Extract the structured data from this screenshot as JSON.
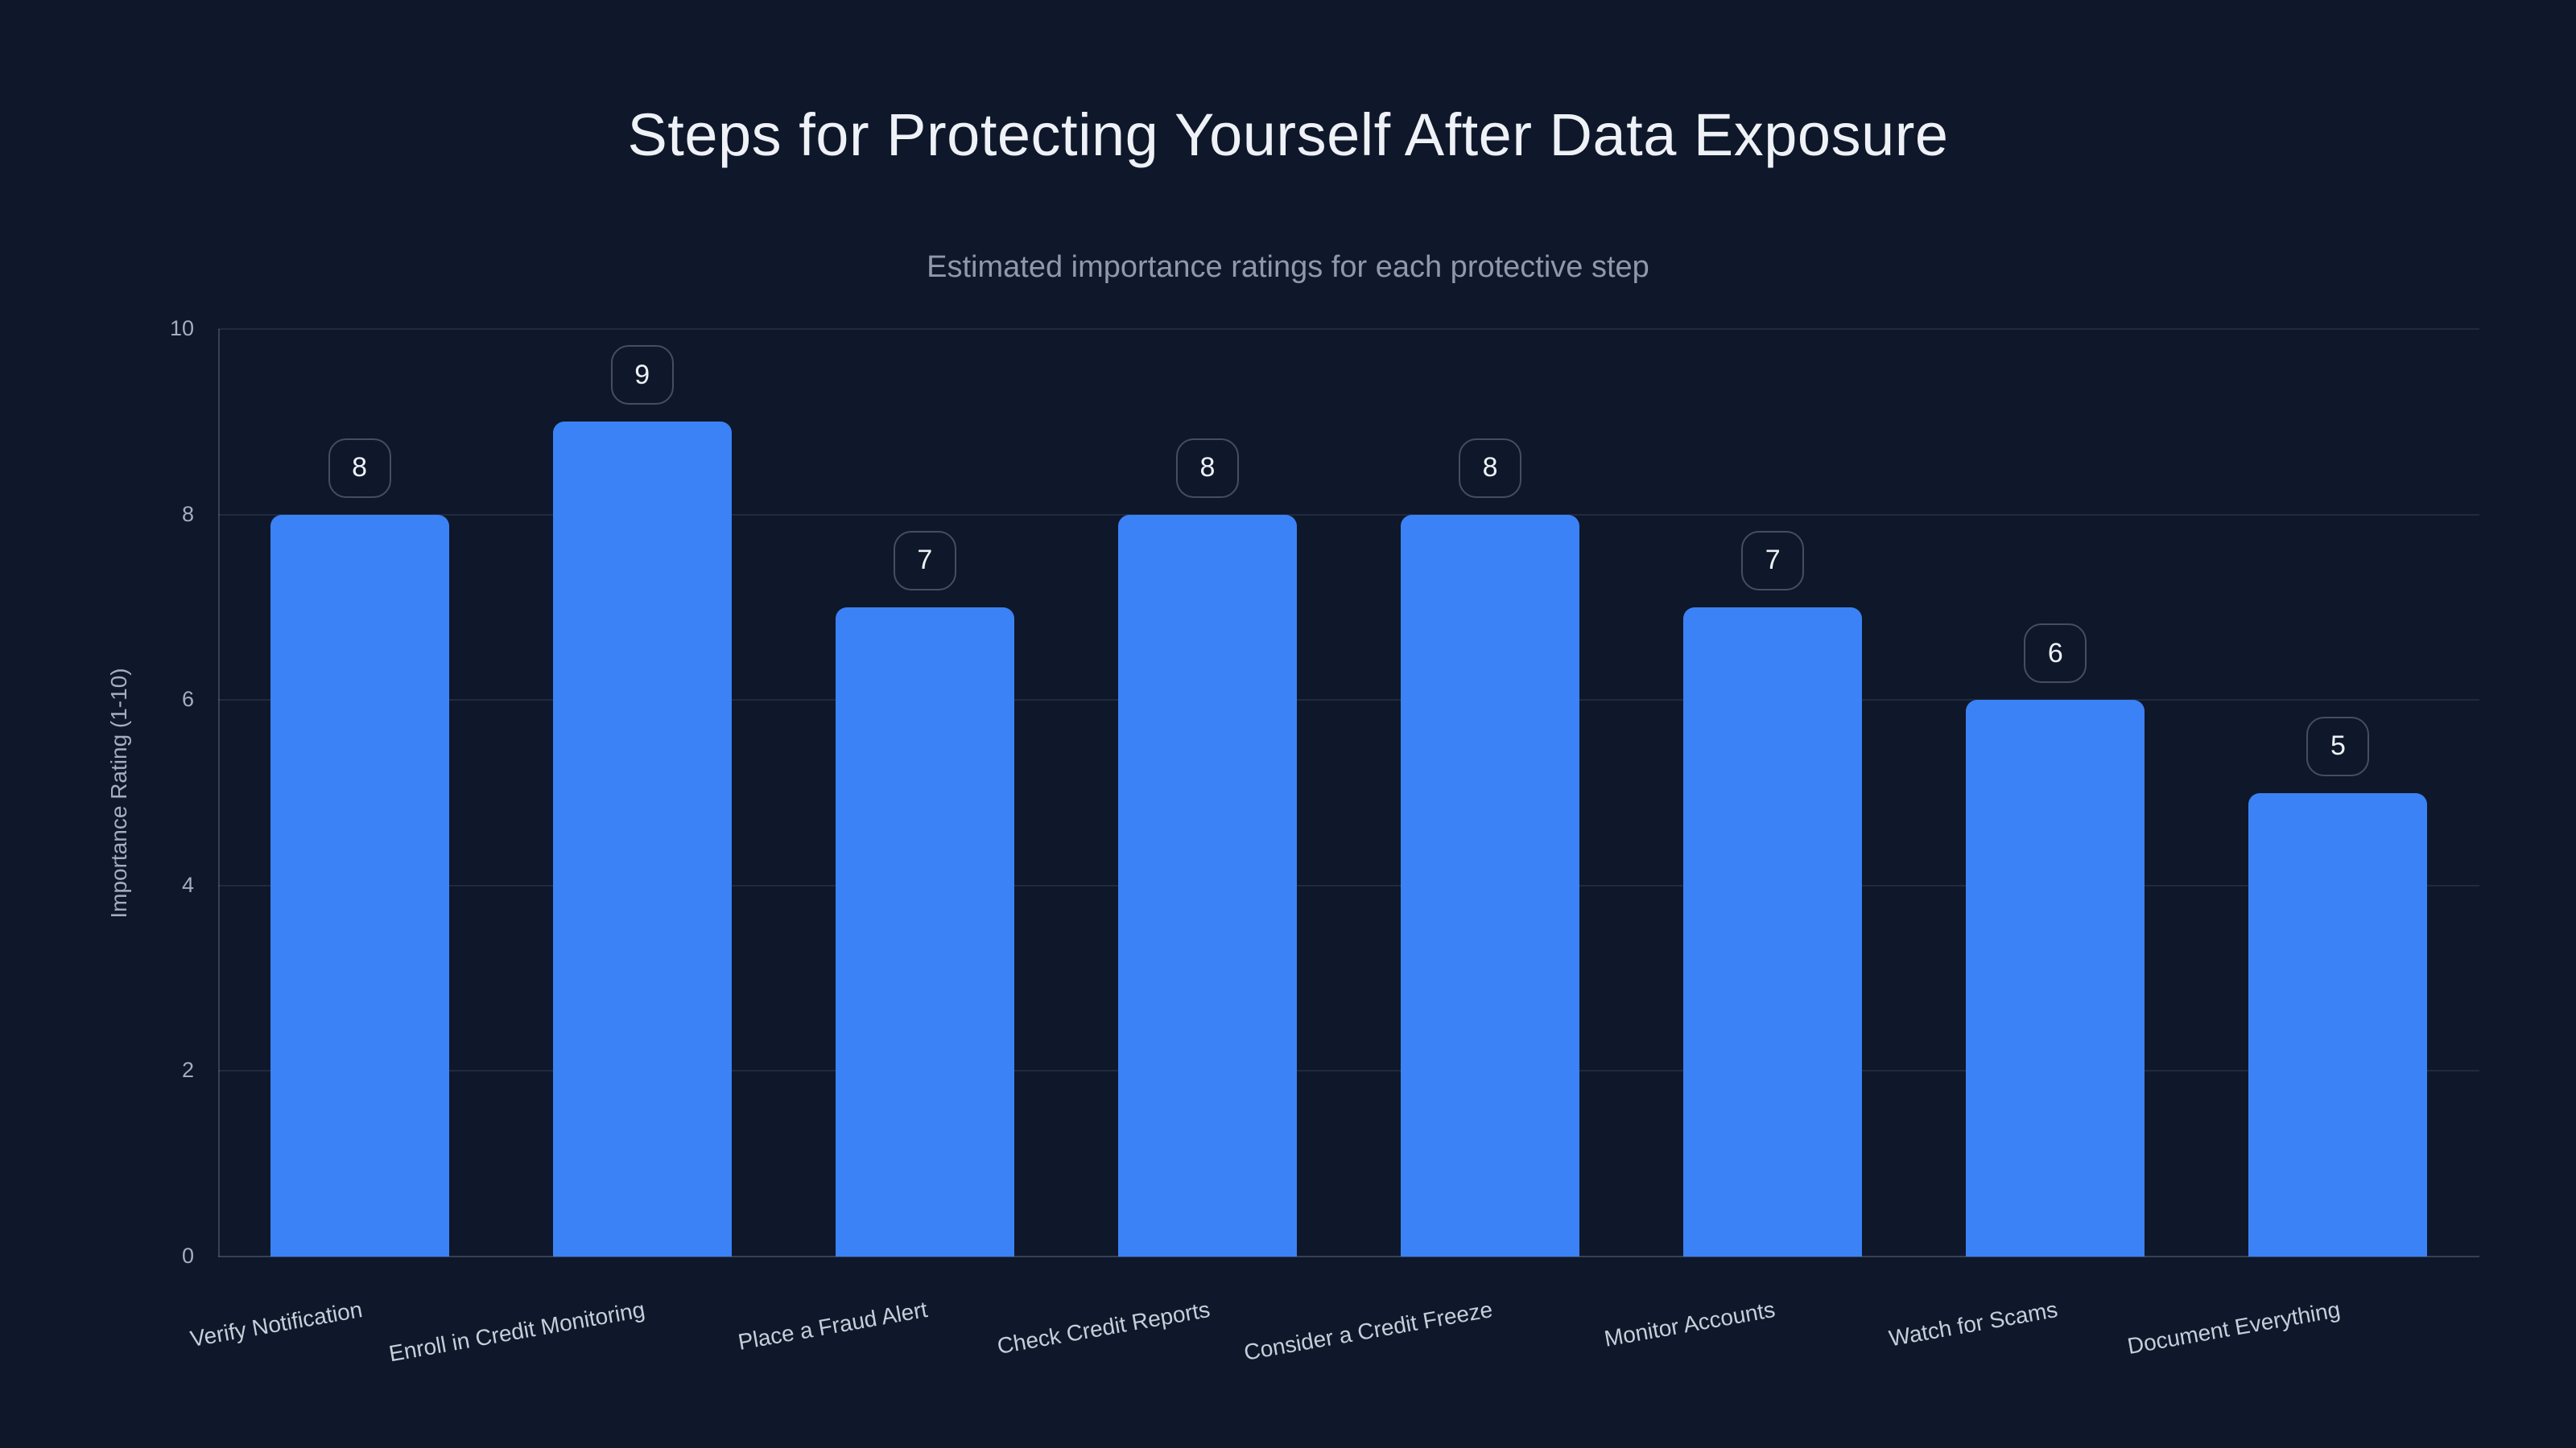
{
  "chart_data": {
    "type": "bar",
    "title": "Steps for Protecting Yourself After Data Exposure",
    "subtitle": "Estimated importance ratings for each protective step",
    "categories": [
      "Verify Notification",
      "Enroll in Credit Monitoring",
      "Place a Fraud Alert",
      "Check Credit Reports",
      "Consider a Credit Freeze",
      "Monitor Accounts",
      "Watch for Scams",
      "Document Everything"
    ],
    "values": [
      8,
      9,
      7,
      8,
      8,
      7,
      6,
      5
    ],
    "xlabel": "",
    "ylabel": "Importance Rating (1-10)",
    "ylim": [
      0,
      10
    ],
    "yticks": [
      0,
      2,
      4,
      6,
      8,
      10
    ],
    "grid": true,
    "legend_position": "none",
    "bar_color": "#3b82f6",
    "value_label_style": "outlined-badge-above-bar"
  },
  "colors": {
    "background": "#0f172a",
    "bar": "#3b82f6",
    "title_text": "#eef1f6",
    "subtitle_text": "#8e99ab",
    "tick_text": "#a3aebf",
    "category_text": "#c6ceda",
    "badge_text": "#eef2f7",
    "badge_border": "rgba(148,163,184,0.40)",
    "gridline": "rgba(148,163,184,0.14)",
    "axis_line": "rgba(148,163,184,0.30)"
  }
}
